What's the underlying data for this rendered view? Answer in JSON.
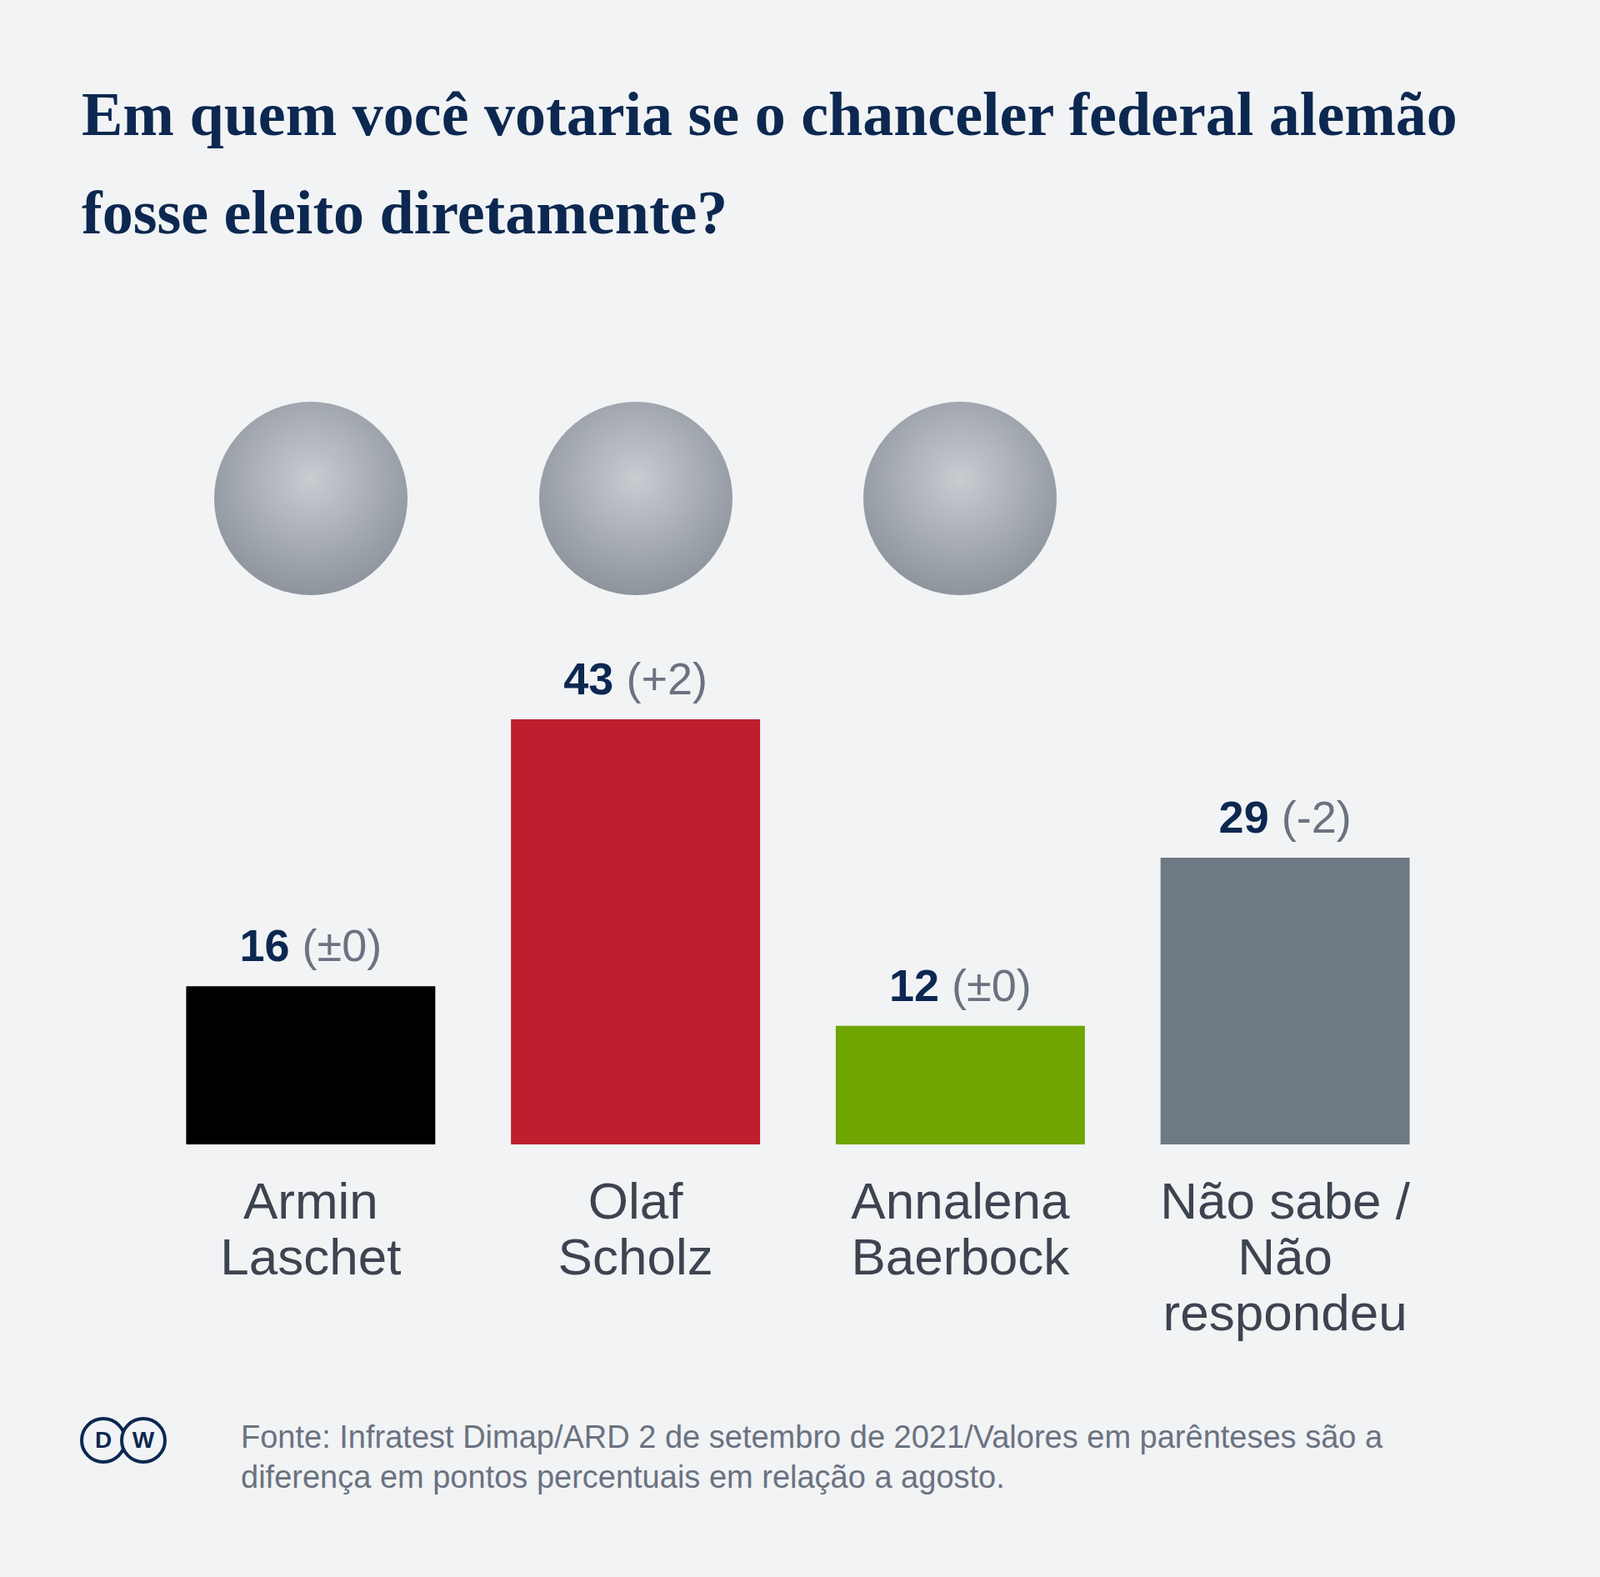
{
  "chart_data": {
    "type": "bar",
    "title": "Em quem você votaria se o chanceler federal alemão fosse eleito diretamente?",
    "categories": [
      "Armin Laschet",
      "Olaf Scholz",
      "Annalena Baerbock",
      "Não sabe / Não respondeu"
    ],
    "values": [
      16,
      43,
      12,
      29
    ],
    "changes": [
      0,
      2,
      0,
      -2
    ],
    "change_labels": [
      "(±0)",
      "(+2)",
      "(±0)",
      "(-2)"
    ],
    "colors": [
      "#000000",
      "#be1e2d",
      "#6fa500",
      "#6f7983"
    ],
    "ylim": [
      0,
      50
    ],
    "grid": false,
    "data_labels": true,
    "tick_labels": "x",
    "source": "Fonte: Infratest Dimap/ARD  2 de setembro de 2021/Valores em parênteses são a diferença em pontos percentuais em relação a agosto.",
    "logo": "DW"
  }
}
